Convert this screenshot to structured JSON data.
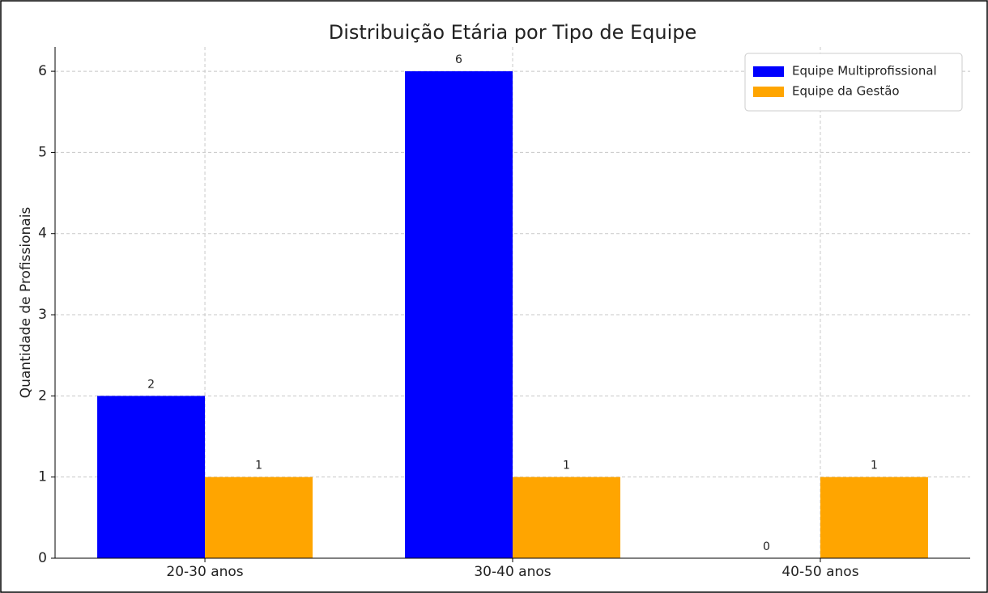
{
  "chart_data": {
    "type": "bar",
    "title": "Distribuição Etária por Tipo de Equipe",
    "ylabel": "Quantidade de Profissionais",
    "categories": [
      "20-30 anos",
      "30-40 anos",
      "40-50 anos"
    ],
    "series": [
      {
        "name": "Equipe Multiprofissional",
        "color": "#0000ff",
        "values": [
          2,
          6,
          0
        ]
      },
      {
        "name": "Equipe da Gestão",
        "color": "#ffa500",
        "values": [
          1,
          1,
          1
        ]
      }
    ],
    "ylim": [
      0,
      6.3
    ],
    "yticks": [
      0,
      1,
      2,
      3,
      4,
      5,
      6
    ],
    "grid": true,
    "legend": "upper right"
  }
}
